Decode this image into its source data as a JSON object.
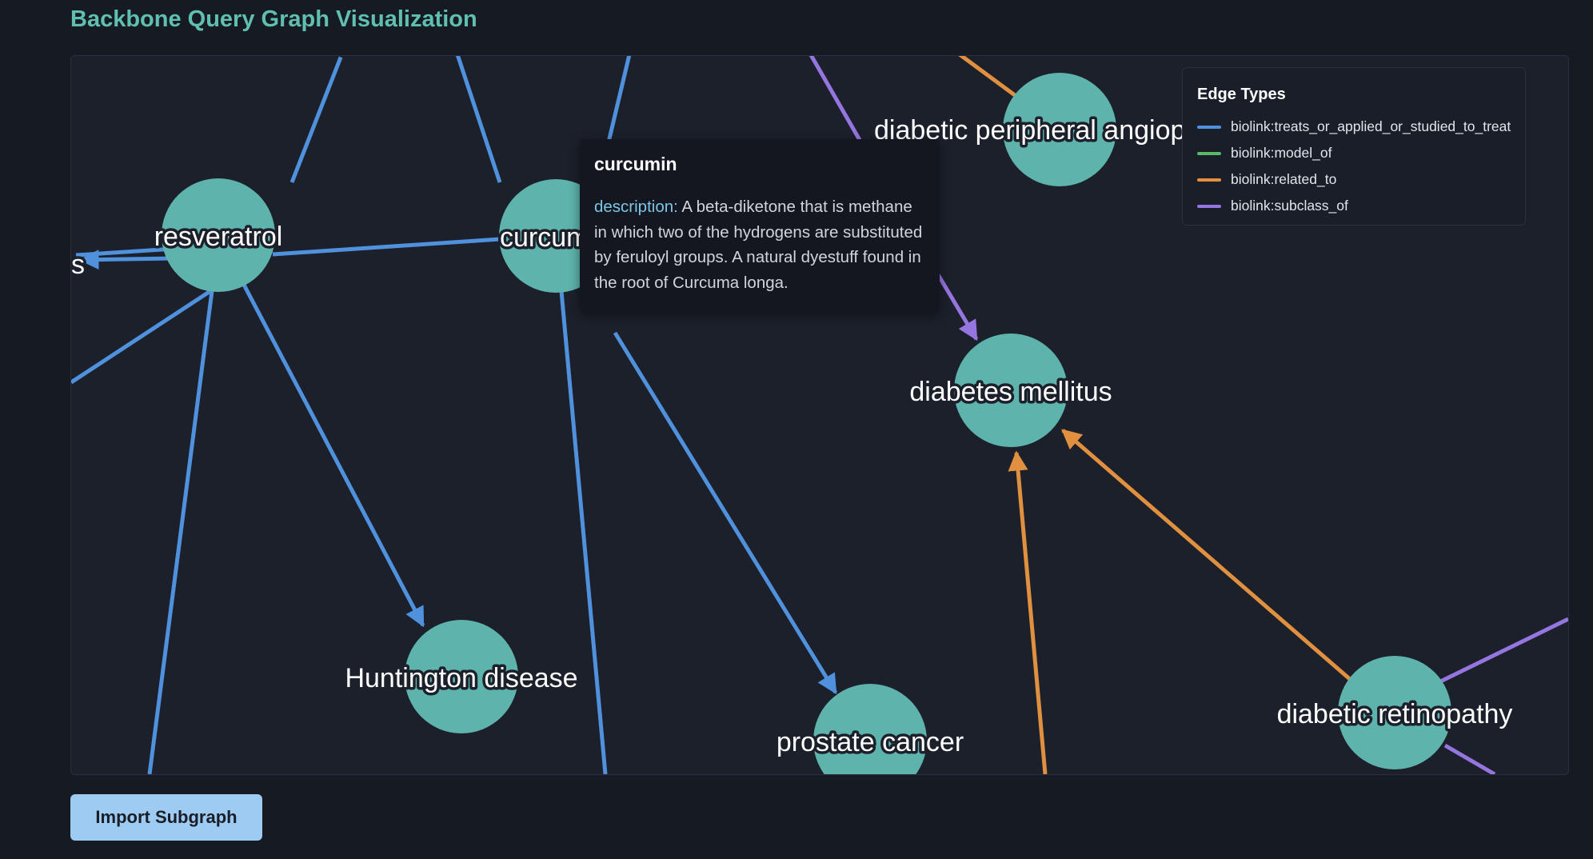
{
  "page": {
    "title": "Backbone Query Graph Visualization"
  },
  "graph": {
    "node_color": "#5fb3ad",
    "nodes": [
      {
        "id": "resveratrol",
        "label": "resveratrol"
      },
      {
        "id": "curcumin",
        "label": "curcumin"
      },
      {
        "id": "diabetic-peripheral",
        "label": "diabetic peripheral angiopathy"
      },
      {
        "id": "diabetes-mellitus",
        "label": "diabetes mellitus"
      },
      {
        "id": "huntington",
        "label": "Huntington disease"
      },
      {
        "id": "prostate-cancer",
        "label": "prostate cancer"
      },
      {
        "id": "diabetic-retinopathy",
        "label": "diabetic retinopathy"
      },
      {
        "id": "offscreen-left",
        "label": "s"
      }
    ],
    "edges": [
      {
        "from": "resveratrol",
        "to": "huntington",
        "type": "biolink:treats_or_applied_or_studied_to_treat"
      },
      {
        "from": "resveratrol",
        "to": "curcumin",
        "type": "biolink:treats_or_applied_or_studied_to_treat"
      },
      {
        "from": "resveratrol",
        "to": "offscreen-left",
        "type": "biolink:treats_or_applied_or_studied_to_treat"
      },
      {
        "from": "curcumin",
        "to": "prostate-cancer",
        "type": "biolink:treats_or_applied_or_studied_to_treat"
      },
      {
        "from": "diabetic-peripheral",
        "to": "diabetes-mellitus",
        "type": "biolink:subclass_of"
      },
      {
        "from": "diabetic-retinopathy",
        "to": "diabetes-mellitus",
        "type": "biolink:related_to"
      }
    ]
  },
  "tooltip": {
    "title": "curcumin",
    "key": "description:",
    "text": "A beta-diketone that is methane in which two of the hydrogens are substituted by feruloyl groups. A natural dyestuff found in the root of Curcuma longa."
  },
  "legend": {
    "title": "Edge Types",
    "items": [
      {
        "label": "biolink:treats_or_applied_or_studied_to_treat",
        "color": "#4f91dc"
      },
      {
        "label": "biolink:model_of",
        "color": "#5cb968"
      },
      {
        "label": "biolink:related_to",
        "color": "#e0903f"
      },
      {
        "label": "biolink:subclass_of",
        "color": "#9575df"
      }
    ]
  },
  "actions": {
    "import_label": "Import Subgraph"
  }
}
